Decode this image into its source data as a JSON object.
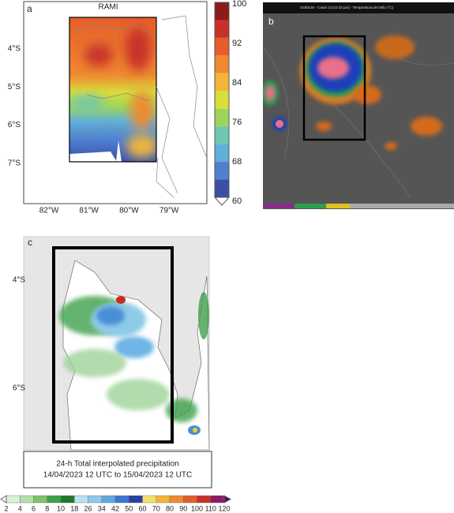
{
  "panel_a": {
    "label": "a",
    "title": "RAMI",
    "lat_labels": [
      "4°S",
      "5°S",
      "6°S",
      "7°S"
    ],
    "lon_labels": [
      "82°W",
      "81°W",
      "80°W",
      "79°W"
    ],
    "colorbar_labels": [
      100,
      92,
      84,
      76,
      68,
      60
    ]
  },
  "panel_b": {
    "label": "b",
    "header": "GOES16 - Canal 13 [10.33 µm] - Temperatura de brillo (°C)"
  },
  "panel_c": {
    "label": "c",
    "lat_labels": [
      "4°S",
      "6°S"
    ],
    "caption": [
      "24-h Total interpolated precipitation",
      "14/04/2023 12 UTC to 15/04/2023 12 UTC"
    ],
    "colorbar_labels": [
      2,
      4,
      6,
      8,
      10,
      18,
      26,
      34,
      42,
      50,
      60,
      70,
      80,
      90,
      100,
      110,
      120
    ]
  }
}
